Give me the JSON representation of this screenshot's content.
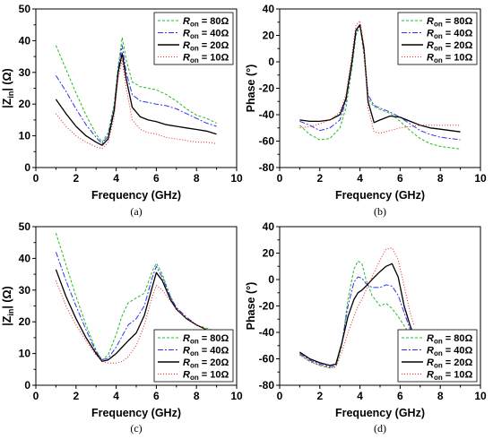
{
  "chart_data": [
    {
      "id": "a",
      "type": "line",
      "caption": "(a)",
      "xlabel": "Frequency (GHz)",
      "ylabel": "|Z_in| (Ω)",
      "ylabel_main": "|Z",
      "ylabel_sub": "in",
      "ylabel_tail": "| (Ω)",
      "xlim": [
        0,
        10
      ],
      "ylim": [
        0,
        50
      ],
      "xticks": [
        "0",
        "2",
        "4",
        "6",
        "8",
        "10"
      ],
      "yticks": [
        "0",
        "10",
        "20",
        "30",
        "40",
        "50"
      ],
      "legend_position": "top-right",
      "series": [
        {
          "name": "R_on = 80Ω",
          "r_value": "80Ω",
          "color": "#22bb22",
          "dash": "3,2",
          "x": [
            1.0,
            1.5,
            2.0,
            2.5,
            3.0,
            3.3,
            3.6,
            3.9,
            4.1,
            4.3,
            4.5,
            4.8,
            5.2,
            5.6,
            6.0,
            6.5,
            7.0,
            7.5,
            8.0,
            8.5,
            9.0
          ],
          "y": [
            38.5,
            31.0,
            23.5,
            16.5,
            10.5,
            8.0,
            11.0,
            20.0,
            32.0,
            41.0,
            34.0,
            27.0,
            25.5,
            25.0,
            24.5,
            23.0,
            21.0,
            18.5,
            16.5,
            15.5,
            14.0
          ]
        },
        {
          "name": "R_on = 40Ω",
          "r_value": "40Ω",
          "color": "#3333ee",
          "dash": "6,2,2,2",
          "x": [
            1.0,
            1.5,
            2.0,
            2.5,
            3.0,
            3.3,
            3.6,
            3.9,
            4.1,
            4.3,
            4.5,
            4.8,
            5.2,
            5.6,
            6.0,
            6.5,
            7.0,
            7.5,
            8.0,
            8.5,
            9.0
          ],
          "y": [
            29.0,
            24.0,
            18.5,
            13.5,
            9.5,
            7.5,
            10.0,
            19.0,
            31.0,
            38.5,
            30.0,
            23.0,
            21.0,
            20.5,
            20.0,
            19.5,
            18.5,
            17.0,
            15.5,
            14.0,
            13.0
          ]
        },
        {
          "name": "R_on = 20Ω",
          "r_value": "20Ω",
          "color": "#000000",
          "dash": "",
          "x": [
            1.0,
            1.5,
            2.0,
            2.5,
            3.0,
            3.3,
            3.6,
            3.9,
            4.1,
            4.3,
            4.5,
            4.8,
            5.2,
            5.6,
            6.0,
            6.5,
            7.0,
            7.5,
            8.0,
            8.5,
            9.0
          ],
          "y": [
            21.5,
            17.0,
            13.0,
            10.0,
            8.0,
            7.0,
            9.0,
            18.0,
            30.0,
            36.0,
            28.0,
            19.0,
            16.0,
            15.0,
            14.5,
            13.5,
            13.0,
            12.5,
            12.0,
            11.5,
            10.5
          ]
        },
        {
          "name": "R_on = 10Ω",
          "r_value": "10Ω",
          "color": "#ee2222",
          "dash": "1,2",
          "x": [
            1.0,
            1.5,
            2.0,
            2.5,
            3.0,
            3.3,
            3.6,
            3.9,
            4.1,
            4.3,
            4.5,
            4.8,
            5.2,
            5.6,
            6.0,
            6.5,
            7.0,
            7.5,
            8.0,
            8.5,
            9.0
          ],
          "y": [
            17.0,
            13.0,
            10.0,
            8.0,
            6.5,
            6.0,
            8.0,
            16.0,
            28.0,
            34.0,
            25.0,
            15.0,
            12.0,
            11.0,
            10.5,
            9.5,
            9.0,
            8.5,
            8.0,
            8.0,
            7.5
          ]
        }
      ]
    },
    {
      "id": "b",
      "type": "line",
      "caption": "(b)",
      "xlabel": "Frequency (GHz)",
      "ylabel": "Phase (°)",
      "xlim": [
        0,
        10
      ],
      "ylim": [
        -80,
        40
      ],
      "xticks": [
        "0",
        "2",
        "4",
        "6",
        "8",
        "10"
      ],
      "yticks": [
        "-80",
        "-60",
        "-40",
        "-20",
        "0",
        "20",
        "40"
      ],
      "legend_position": "top-right",
      "series": [
        {
          "name": "R_on = 80Ω",
          "r_value": "80Ω",
          "color": "#22bb22",
          "dash": "3,2",
          "x": [
            1.0,
            1.5,
            2.0,
            2.5,
            3.0,
            3.3,
            3.6,
            3.8,
            4.0,
            4.2,
            4.4,
            4.7,
            5.0,
            5.5,
            6.0,
            6.5,
            7.0,
            7.5,
            8.0,
            8.5,
            9.0
          ],
          "y": [
            -48,
            -55,
            -59,
            -58,
            -50,
            -35,
            -5,
            20,
            27,
            5,
            -28,
            -34,
            -36,
            -39,
            -45,
            -52,
            -58,
            -62,
            -64,
            -65,
            -66
          ]
        },
        {
          "name": "R_on = 40Ω",
          "r_value": "40Ω",
          "color": "#3333ee",
          "dash": "6,2,2,2",
          "x": [
            1.0,
            1.5,
            2.0,
            2.5,
            3.0,
            3.3,
            3.6,
            3.8,
            4.0,
            4.2,
            4.4,
            4.7,
            5.0,
            5.5,
            6.0,
            6.5,
            7.0,
            7.5,
            8.0,
            8.5,
            9.0
          ],
          "y": [
            -45,
            -48,
            -52,
            -50,
            -44,
            -30,
            -2,
            22,
            28,
            8,
            -25,
            -33,
            -35,
            -38,
            -42,
            -47,
            -52,
            -55,
            -57,
            -58,
            -59
          ]
        },
        {
          "name": "R_on = 20Ω",
          "r_value": "20Ω",
          "color": "#000000",
          "dash": "",
          "x": [
            1.0,
            1.5,
            2.0,
            2.5,
            3.0,
            3.3,
            3.6,
            3.8,
            4.0,
            4.2,
            4.4,
            4.7,
            5.0,
            5.5,
            6.0,
            6.5,
            7.0,
            7.5,
            8.0,
            8.5,
            9.0
          ],
          "y": [
            -44,
            -45,
            -45,
            -44,
            -40,
            -28,
            0,
            24,
            28,
            10,
            -30,
            -46,
            -44,
            -41,
            -42,
            -45,
            -48,
            -50,
            -51,
            -52,
            -53
          ]
        },
        {
          "name": "R_on = 10Ω",
          "r_value": "10Ω",
          "color": "#ee2222",
          "dash": "1,2",
          "x": [
            1.0,
            1.5,
            2.0,
            2.5,
            3.0,
            3.3,
            3.6,
            3.8,
            4.0,
            4.2,
            4.4,
            4.7,
            5.0,
            5.5,
            6.0,
            6.5,
            7.0,
            7.5,
            8.0,
            8.5,
            9.0
          ],
          "y": [
            -50,
            -49,
            -47,
            -44,
            -38,
            -25,
            5,
            28,
            31,
            12,
            -35,
            -53,
            -54,
            -52,
            -50,
            -49,
            -48,
            -48,
            -48,
            -48,
            -48
          ]
        }
      ]
    },
    {
      "id": "c",
      "type": "line",
      "caption": "(c)",
      "xlabel": "Frequency (GHz)",
      "ylabel": "|Z_in| (Ω)",
      "ylabel_main": "|Z",
      "ylabel_sub": "in",
      "ylabel_tail": "| (Ω)",
      "xlim": [
        0,
        10
      ],
      "ylim": [
        0,
        50
      ],
      "xticks": [
        "0",
        "2",
        "4",
        "6",
        "8",
        "10"
      ],
      "yticks": [
        "0",
        "10",
        "20",
        "30",
        "40",
        "50"
      ],
      "legend_position": "bottom-right",
      "series": [
        {
          "name": "R_on = 80Ω",
          "r_value": "80Ω",
          "color": "#22bb22",
          "dash": "3,2",
          "x": [
            1.0,
            1.5,
            2.0,
            2.5,
            3.0,
            3.3,
            3.6,
            4.0,
            4.3,
            4.6,
            5.0,
            5.4,
            5.8,
            6.0,
            6.3,
            6.7,
            7.0,
            7.5,
            8.0,
            8.5,
            9.0
          ],
          "y": [
            48.0,
            38.0,
            28.0,
            19.0,
            11.0,
            8.0,
            9.5,
            16.0,
            22.0,
            26.0,
            27.5,
            29.0,
            36.0,
            38.5,
            35.0,
            28.0,
            24.0,
            21.0,
            19.0,
            18.0,
            17.0
          ]
        },
        {
          "name": "R_on = 40Ω",
          "r_value": "40Ω",
          "color": "#3333ee",
          "dash": "6,2,2,2",
          "x": [
            1.0,
            1.5,
            2.0,
            2.5,
            3.0,
            3.3,
            3.6,
            4.0,
            4.3,
            4.6,
            5.0,
            5.4,
            5.8,
            6.0,
            6.3,
            6.7,
            7.0,
            7.5,
            8.0,
            8.5,
            9.0
          ],
          "y": [
            42.0,
            33.0,
            25.0,
            17.5,
            10.5,
            8.0,
            8.5,
            12.0,
            15.5,
            19.0,
            21.0,
            25.0,
            34.0,
            37.5,
            34.0,
            28.0,
            24.5,
            21.5,
            19.0,
            17.5,
            16.5
          ]
        },
        {
          "name": "R_on = 20Ω",
          "r_value": "20Ω",
          "color": "#000000",
          "dash": "",
          "x": [
            1.0,
            1.5,
            2.0,
            2.5,
            3.0,
            3.3,
            3.6,
            4.0,
            4.3,
            4.6,
            5.0,
            5.4,
            5.8,
            6.0,
            6.3,
            6.7,
            7.0,
            7.5,
            8.0,
            8.5,
            9.0
          ],
          "y": [
            36.5,
            28.0,
            21.0,
            15.0,
            10.0,
            7.5,
            8.0,
            10.0,
            12.0,
            14.0,
            16.5,
            22.0,
            31.0,
            35.5,
            33.0,
            27.0,
            24.0,
            21.0,
            19.0,
            17.5,
            16.5
          ]
        },
        {
          "name": "R_on = 10Ω",
          "r_value": "10Ω",
          "color": "#ee2222",
          "dash": "1,2",
          "x": [
            1.0,
            1.5,
            2.0,
            2.5,
            3.0,
            3.3,
            3.6,
            4.0,
            4.3,
            4.6,
            5.0,
            5.4,
            5.8,
            6.0,
            6.3,
            6.7,
            7.0,
            7.5,
            8.0,
            8.5,
            9.0
          ],
          "y": [
            33.0,
            25.0,
            19.0,
            14.0,
            9.5,
            7.5,
            7.0,
            7.0,
            7.5,
            9.0,
            12.5,
            19.0,
            28.0,
            31.5,
            30.0,
            26.5,
            24.0,
            21.0,
            19.0,
            17.5,
            16.5
          ]
        }
      ]
    },
    {
      "id": "d",
      "type": "line",
      "caption": "(d)",
      "xlabel": "Frequency (GHz)",
      "ylabel": "Phase (°)",
      "xlim": [
        0,
        10
      ],
      "ylim": [
        -80,
        40
      ],
      "xticks": [
        "0",
        "2",
        "4",
        "6",
        "8",
        "10"
      ],
      "yticks": [
        "-80",
        "-60",
        "-40",
        "-20",
        "0",
        "20",
        "40"
      ],
      "legend_position": "bottom-right",
      "series": [
        {
          "name": "R_on = 80Ω",
          "r_value": "80Ω",
          "color": "#22bb22",
          "dash": "3,2",
          "x": [
            1.0,
            1.5,
            2.0,
            2.5,
            2.8,
            3.1,
            3.4,
            3.7,
            3.9,
            4.1,
            4.3,
            4.6,
            5.0,
            5.3,
            5.6,
            5.9,
            6.2,
            6.5,
            6.7
          ],
          "y": [
            -57,
            -62,
            -65,
            -67,
            -66,
            -50,
            -15,
            8,
            14,
            12,
            0,
            -12,
            -20,
            -18,
            -22,
            -28,
            -35,
            -42,
            -46
          ]
        },
        {
          "name": "R_on = 40Ω",
          "r_value": "40Ω",
          "color": "#3333ee",
          "dash": "6,2,2,2",
          "x": [
            1.0,
            1.5,
            2.0,
            2.5,
            2.8,
            3.1,
            3.4,
            3.7,
            3.9,
            4.1,
            4.3,
            4.6,
            5.0,
            5.3,
            5.6,
            5.9,
            6.2,
            6.5,
            6.7
          ],
          "y": [
            -56,
            -61,
            -64,
            -66,
            -65,
            -48,
            -20,
            -2,
            2,
            1,
            -3,
            -6,
            -6,
            -4,
            -5,
            -12,
            -25,
            -38,
            -45
          ]
        },
        {
          "name": "R_on = 20Ω",
          "r_value": "20Ω",
          "color": "#000000",
          "dash": "",
          "x": [
            1.0,
            1.5,
            2.0,
            2.5,
            2.8,
            3.1,
            3.4,
            3.7,
            3.9,
            4.1,
            4.3,
            4.6,
            5.0,
            5.3,
            5.6,
            5.9,
            6.2,
            6.5,
            6.7
          ],
          "y": [
            -55,
            -60,
            -63,
            -65,
            -64,
            -48,
            -28,
            -15,
            -10,
            -8,
            -5,
            0,
            6,
            10,
            12,
            2,
            -20,
            -35,
            -43
          ]
        },
        {
          "name": "R_on = 10Ω",
          "r_value": "10Ω",
          "color": "#ee2222",
          "dash": "1,2",
          "x": [
            1.0,
            1.5,
            2.0,
            2.5,
            2.8,
            3.1,
            3.4,
            3.7,
            3.9,
            4.1,
            4.3,
            4.6,
            5.0,
            5.3,
            5.6,
            5.9,
            6.2,
            6.5,
            6.7
          ],
          "y": [
            -57,
            -62,
            -65,
            -67,
            -66,
            -55,
            -40,
            -28,
            -20,
            -15,
            -8,
            2,
            15,
            23,
            24,
            15,
            -5,
            -25,
            -35
          ]
        }
      ]
    }
  ]
}
